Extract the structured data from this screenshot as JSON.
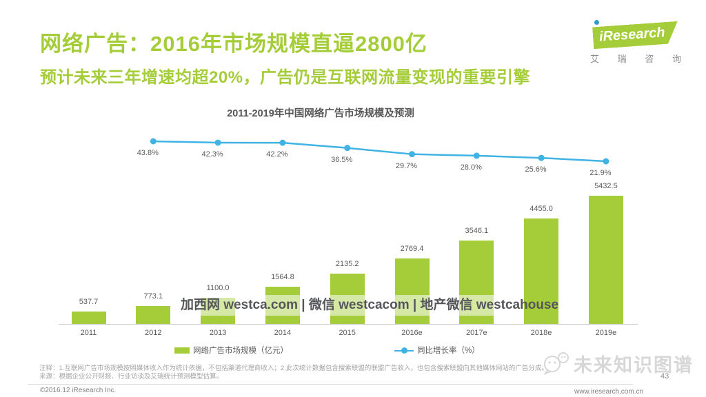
{
  "header": {
    "title": "网络广告：2016年市场规模直逼2800亿",
    "subtitle": "预计未来三年增速均超20%，广告仍是互联网流量变现的重要引擎",
    "accent_green": "#a5cd39"
  },
  "logo": {
    "brand": "iResearch",
    "caption_chars": [
      "艾",
      "瑞",
      "咨",
      "询"
    ],
    "shape_color": "#a5cd39",
    "dot_color": "#2d9ec9"
  },
  "chart_data": {
    "type": "bar+line",
    "title": "2011-2019年中国网络广告市场规模及预测",
    "categories": [
      "2011",
      "2012",
      "2013",
      "2014",
      "2015",
      "2016e",
      "2017e",
      "2018e",
      "2019e"
    ],
    "series": [
      {
        "name": "网络广告市场规模（亿元）",
        "type": "bar",
        "color": "#a5cd39",
        "values": [
          537.7,
          773.1,
          1100.0,
          1564.8,
          2135.2,
          2769.4,
          3546.1,
          4455.0,
          5432.5
        ],
        "labels": [
          "537.7",
          "773.1",
          "1100.0",
          "1564.8",
          "2135.2",
          "2769.4",
          "3546.1",
          "4455.0",
          "5432.5"
        ]
      },
      {
        "name": "同比增长率（%）",
        "type": "line",
        "color": "#3fb3e4",
        "values": [
          null,
          43.8,
          42.3,
          42.2,
          36.5,
          29.7,
          28.0,
          25.6,
          21.9
        ],
        "labels": [
          "",
          "43.8%",
          "42.3%",
          "42.2%",
          "36.5%",
          "29.7%",
          "28.0%",
          "25.6%",
          "21.9%"
        ]
      }
    ],
    "legend_position": "bottom",
    "grid": false,
    "ylim_bar": [
      0,
      5432.5
    ],
    "ylim_pct": [
      0,
      43.8
    ]
  },
  "watermarks": {
    "center": "加西网 westca.com | 微信 westcacom | 地产微信 westcahouse",
    "corner": "未来知识图谱"
  },
  "footer": {
    "note1": "注释：1.互联网广告市场规模按照媒体收入作为统计依据，不包括渠道代理商收入；2.此次统计数据包含搜索联盟的联盟广告收入，也包含搜索联盟向其他媒体网站的广告分成。",
    "note2": "来源：根据企业公开财报、行业访谈及艾瑞统计预测模型估算。",
    "copyright": "©2016.12 iResearch Inc.",
    "website": "www.iresearch.com.cn",
    "page_number": "43"
  }
}
